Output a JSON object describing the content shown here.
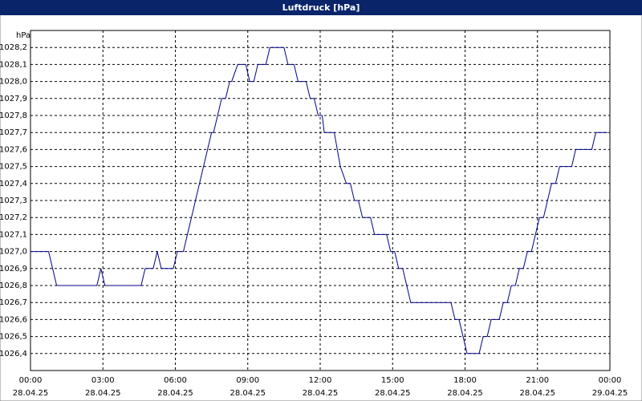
{
  "chart_data": {
    "type": "line",
    "title": "Luftdruck [hPa]",
    "y_label": "hPa",
    "x": [
      "2025-04-28T00:00",
      "2025-04-28T00:45",
      "2025-04-28T01:05",
      "2025-04-28T02:45",
      "2025-04-28T02:55",
      "2025-04-28T03:05",
      "2025-04-28T04:35",
      "2025-04-28T04:45",
      "2025-04-28T05:05",
      "2025-04-28T05:15",
      "2025-04-28T05:25",
      "2025-04-28T05:55",
      "2025-04-28T06:05",
      "2025-04-28T06:20",
      "2025-04-28T06:30",
      "2025-04-28T06:40",
      "2025-04-28T06:50",
      "2025-04-28T07:00",
      "2025-04-28T07:10",
      "2025-04-28T07:20",
      "2025-04-28T07:30",
      "2025-04-28T07:35",
      "2025-04-28T07:45",
      "2025-04-28T07:55",
      "2025-04-28T08:05",
      "2025-04-28T08:15",
      "2025-04-28T08:20",
      "2025-04-28T08:35",
      "2025-04-28T08:55",
      "2025-04-28T09:05",
      "2025-04-28T09:15",
      "2025-04-28T09:25",
      "2025-04-28T09:45",
      "2025-04-28T09:55",
      "2025-04-28T10:30",
      "2025-04-28T10:40",
      "2025-04-28T10:55",
      "2025-04-28T11:05",
      "2025-04-28T11:25",
      "2025-04-28T11:35",
      "2025-04-28T11:45",
      "2025-04-28T11:55",
      "2025-04-28T12:05",
      "2025-04-28T12:10",
      "2025-04-28T12:35",
      "2025-04-28T12:50",
      "2025-04-28T13:05",
      "2025-04-28T13:15",
      "2025-04-28T13:25",
      "2025-04-28T13:35",
      "2025-04-28T13:45",
      "2025-04-28T14:05",
      "2025-04-28T14:15",
      "2025-04-28T14:45",
      "2025-04-28T14:55",
      "2025-04-28T15:05",
      "2025-04-28T15:15",
      "2025-04-28T15:25",
      "2025-04-28T15:45",
      "2025-04-28T17:25",
      "2025-04-28T17:35",
      "2025-04-28T17:45",
      "2025-04-28T18:05",
      "2025-04-28T18:35",
      "2025-04-28T18:45",
      "2025-04-28T18:55",
      "2025-04-28T19:05",
      "2025-04-28T19:25",
      "2025-04-28T19:35",
      "2025-04-28T19:45",
      "2025-04-28T19:55",
      "2025-04-28T20:05",
      "2025-04-28T20:15",
      "2025-04-28T20:25",
      "2025-04-28T20:35",
      "2025-04-28T20:45",
      "2025-04-28T21:05",
      "2025-04-28T21:15",
      "2025-04-28T21:35",
      "2025-04-28T21:45",
      "2025-04-28T21:55",
      "2025-04-28T22:25",
      "2025-04-28T22:35",
      "2025-04-28T23:15",
      "2025-04-28T23:25",
      "2025-04-28T23:55"
    ],
    "series": [
      {
        "color": "#00008b",
        "values": [
          1027.0,
          1027.0,
          1026.8,
          1026.8,
          1026.9,
          1026.8,
          1026.8,
          1026.9,
          1026.9,
          1027.0,
          1026.9,
          1026.9,
          1027.0,
          1027.0,
          1027.1,
          1027.2,
          1027.3,
          1027.4,
          1027.5,
          1027.6,
          1027.7,
          1027.7,
          1027.8,
          1027.9,
          1027.9,
          1028.0,
          1028.0,
          1028.1,
          1028.1,
          1028.0,
          1028.0,
          1028.1,
          1028.1,
          1028.2,
          1028.2,
          1028.1,
          1028.1,
          1028.0,
          1028.0,
          1027.9,
          1027.9,
          1027.8,
          1027.8,
          1027.7,
          1027.7,
          1027.5,
          1027.4,
          1027.4,
          1027.3,
          1027.3,
          1027.2,
          1027.2,
          1027.1,
          1027.1,
          1027.0,
          1027.0,
          1026.9,
          1026.9,
          1026.7,
          1026.7,
          1026.6,
          1026.6,
          1026.4,
          1026.4,
          1026.5,
          1026.5,
          1026.6,
          1026.6,
          1026.7,
          1026.7,
          1026.8,
          1026.8,
          1026.9,
          1026.9,
          1027.0,
          1027.0,
          1027.2,
          1027.2,
          1027.4,
          1027.4,
          1027.5,
          1027.5,
          1027.6,
          1027.6,
          1027.7,
          1027.7
        ]
      }
    ],
    "xlim": [
      "2025-04-28T00:00",
      "2025-04-29T00:00"
    ],
    "xticks": [
      {
        "value": "2025-04-28T00:00",
        "label": "00:00",
        "date": "28.04.25"
      },
      {
        "value": "2025-04-28T03:00",
        "label": "03:00",
        "date": "28.04.25"
      },
      {
        "value": "2025-04-28T06:00",
        "label": "06:00",
        "date": "28.04.25"
      },
      {
        "value": "2025-04-28T09:00",
        "label": "09:00",
        "date": "28.04.25"
      },
      {
        "value": "2025-04-28T12:00",
        "label": "12:00",
        "date": "28.04.25"
      },
      {
        "value": "2025-04-28T15:00",
        "label": "15:00",
        "date": "28.04.25"
      },
      {
        "value": "2025-04-28T18:00",
        "label": "18:00",
        "date": "28.04.25"
      },
      {
        "value": "2025-04-28T21:00",
        "label": "21:00",
        "date": "28.04.25"
      },
      {
        "value": "2025-04-29T00:00",
        "label": "00:00",
        "date": "29.04.25"
      }
    ],
    "ylim": [
      1026.3,
      1028.3
    ],
    "yticks": [
      {
        "value": 1026.4,
        "label": "1026,4"
      },
      {
        "value": 1026.5,
        "label": "1026,5"
      },
      {
        "value": 1026.6,
        "label": "1026,6"
      },
      {
        "value": 1026.7,
        "label": "1026,7"
      },
      {
        "value": 1026.8,
        "label": "1026,8"
      },
      {
        "value": 1026.9,
        "label": "1026,9"
      },
      {
        "value": 1027.0,
        "label": "1027,0"
      },
      {
        "value": 1027.1,
        "label": "1027,1"
      },
      {
        "value": 1027.2,
        "label": "1027,2"
      },
      {
        "value": 1027.3,
        "label": "1027,3"
      },
      {
        "value": 1027.4,
        "label": "1027,4"
      },
      {
        "value": 1027.5,
        "label": "1027,5"
      },
      {
        "value": 1027.6,
        "label": "1027,6"
      },
      {
        "value": 1027.7,
        "label": "1027,7"
      },
      {
        "value": 1027.8,
        "label": "1027,8"
      },
      {
        "value": 1027.9,
        "label": "1027,9"
      },
      {
        "value": 1028.0,
        "label": "1028,0"
      },
      {
        "value": 1028.1,
        "label": "1028,1"
      },
      {
        "value": 1028.2,
        "label": "1028,2"
      }
    ],
    "grid": true
  }
}
